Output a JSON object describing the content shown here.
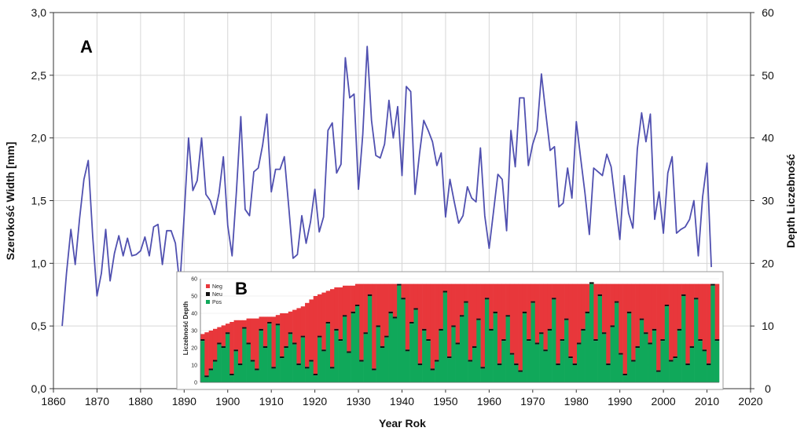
{
  "chart_data": [
    {
      "type": "line",
      "panel_label": "A",
      "xlabel": "Year Rok",
      "ylabel": "Szerokość Width [mm]",
      "ylabel_right": "Depth Liczebność",
      "xlim": [
        1860,
        2020
      ],
      "ylim": [
        0,
        3.0
      ],
      "ylim_right": [
        0,
        60
      ],
      "x_ticks": [
        "1860",
        "1870",
        "1880",
        "1890",
        "1900",
        "1910",
        "1920",
        "1930",
        "1940",
        "1950",
        "1960",
        "1970",
        "1980",
        "1990",
        "2000",
        "2010",
        "2020"
      ],
      "y_ticks": [
        "0,0",
        "0,5",
        "1,0",
        "1,5",
        "2,0",
        "2,5",
        "3,0"
      ],
      "y_ticks_right": [
        "0",
        "10",
        "20",
        "30",
        "40",
        "50",
        "60"
      ],
      "grid": true,
      "color": "#5050b0",
      "series": [
        {
          "x": [
            1862,
            1863,
            1864,
            1865,
            1866,
            1867,
            1868,
            1869,
            1870,
            1871,
            1872,
            1873,
            1874,
            1875,
            1876,
            1877,
            1878,
            1879,
            1880,
            1881,
            1882,
            1883,
            1884,
            1885,
            1886,
            1887,
            1888,
            1889,
            1890,
            1891,
            1892,
            1893,
            1894,
            1895,
            1896,
            1897,
            1898,
            1899,
            1900,
            1901,
            1902,
            1903,
            1904,
            1905,
            1906,
            1907,
            1908,
            1909,
            1910,
            1911,
            1912,
            1913,
            1914,
            1915,
            1916,
            1917,
            1918,
            1919,
            1920,
            1921,
            1922,
            1923,
            1924,
            1925,
            1926,
            1927,
            1928,
            1929,
            1930,
            1931,
            1932,
            1933,
            1934,
            1935,
            1936,
            1937,
            1938,
            1939,
            1940,
            1941,
            1942,
            1943,
            1944,
            1945,
            1946,
            1947,
            1948,
            1949,
            1950,
            1951,
            1952,
            1953,
            1954,
            1955,
            1956,
            1957,
            1958,
            1959,
            1960,
            1961,
            1962,
            1963,
            1964,
            1965,
            1966,
            1967,
            1968,
            1969,
            1970,
            1971,
            1972,
            1973,
            1974,
            1975,
            1976,
            1977,
            1978,
            1979,
            1980,
            1981,
            1982,
            1983,
            1984,
            1985,
            1986,
            1987,
            1988,
            1989,
            1990,
            1991,
            1992,
            1993,
            1994,
            1995,
            1996,
            1997,
            1998,
            1999,
            2000,
            2001,
            2002,
            2003,
            2004,
            2005,
            2006,
            2007,
            2008,
            2009,
            2010,
            2011
          ],
          "values": [
            0.5,
            0.92,
            1.27,
            0.99,
            1.36,
            1.67,
            1.82,
            1.22,
            0.74,
            0.92,
            1.27,
            0.86,
            1.08,
            1.22,
            1.06,
            1.2,
            1.06,
            1.07,
            1.1,
            1.21,
            1.06,
            1.29,
            1.31,
            0.99,
            1.26,
            1.26,
            1.16,
            0.82,
            1.38,
            2.0,
            1.58,
            1.66,
            2.0,
            1.55,
            1.5,
            1.39,
            1.56,
            1.85,
            1.3,
            1.06,
            1.57,
            2.17,
            1.43,
            1.38,
            1.73,
            1.76,
            1.94,
            2.19,
            1.57,
            1.75,
            1.75,
            1.85,
            1.45,
            1.04,
            1.07,
            1.38,
            1.16,
            1.33,
            1.59,
            1.25,
            1.37,
            2.06,
            2.12,
            1.72,
            1.79,
            2.64,
            2.32,
            2.35,
            1.59,
            2.03,
            2.73,
            2.14,
            1.86,
            1.84,
            1.95,
            2.3,
            2.0,
            2.25,
            1.7,
            2.41,
            2.37,
            1.55,
            1.87,
            2.14,
            2.06,
            1.97,
            1.78,
            1.88,
            1.37,
            1.67,
            1.49,
            1.32,
            1.38,
            1.61,
            1.52,
            1.49,
            1.92,
            1.38,
            1.12,
            1.41,
            1.71,
            1.67,
            1.26,
            2.06,
            1.77,
            2.32,
            2.32,
            1.78,
            1.95,
            2.06,
            2.51,
            2.2,
            1.9,
            1.93,
            1.45,
            1.48,
            1.76,
            1.52,
            2.13,
            1.84,
            1.56,
            1.23,
            1.76,
            1.73,
            1.7,
            1.87,
            1.77,
            1.48,
            1.19,
            1.7,
            1.4,
            1.28,
            1.91,
            2.2,
            1.97,
            2.19,
            1.35,
            1.57,
            1.24,
            1.72,
            1.85,
            1.24,
            1.27,
            1.29,
            1.35,
            1.5,
            1.06,
            1.53,
            1.8,
            0.97
          ]
        }
      ]
    },
    {
      "type": "bar",
      "stacked": true,
      "panel_label": "B",
      "ylabel": "Liczebność Depth",
      "ylim": [
        0,
        60
      ],
      "y_ticks": [
        "0",
        "10",
        "20",
        "30",
        "40",
        "50",
        "60"
      ],
      "legend": [
        {
          "name": "Neg",
          "color": "#e8373b"
        },
        {
          "name": "Neu",
          "color": "#111111"
        },
        {
          "name": "Pos",
          "color": "#10a85a"
        }
      ],
      "legend_position": "top-left",
      "x_start": 1863,
      "depth": [
        28,
        29,
        30,
        31,
        32,
        33,
        34,
        35,
        36,
        36,
        36,
        37,
        37,
        37,
        38,
        38,
        38,
        38,
        39,
        40,
        40,
        41,
        42,
        43,
        44,
        46,
        48,
        50,
        51,
        52,
        53,
        54,
        55,
        55,
        56,
        56,
        56,
        57,
        57,
        57,
        57,
        57,
        57,
        57,
        57,
        57,
        57,
        57,
        57,
        57,
        57,
        57,
        57,
        57,
        57,
        57,
        57,
        57,
        57,
        57,
        57,
        57,
        57,
        57,
        57,
        57,
        57,
        57,
        57,
        57,
        57,
        57,
        57,
        57,
        57,
        57,
        57,
        57,
        57,
        57,
        57,
        57,
        57,
        57,
        57,
        57,
        57,
        57,
        57,
        57,
        57,
        57,
        57,
        57,
        57,
        57,
        57,
        57,
        57,
        57,
        57,
        57,
        57,
        57,
        57,
        57,
        57,
        57,
        57,
        57,
        57,
        57,
        57,
        57,
        57,
        57,
        57,
        57,
        57,
        57,
        57,
        57,
        57,
        57
      ],
      "pos": [
        24,
        3,
        7,
        12,
        22,
        20,
        28,
        4,
        18,
        10,
        31,
        22,
        12,
        7,
        30,
        20,
        34,
        8,
        33,
        14,
        20,
        28,
        22,
        10,
        26,
        8,
        12,
        4,
        26,
        18,
        34,
        8,
        30,
        24,
        38,
        17,
        40,
        44,
        12,
        28,
        50,
        7,
        32,
        20,
        26,
        40,
        37,
        56,
        48,
        18,
        34,
        42,
        10,
        30,
        24,
        7,
        12,
        30,
        52,
        14,
        32,
        22,
        38,
        46,
        12,
        20,
        36,
        8,
        48,
        30,
        40,
        10,
        24,
        38,
        16,
        10,
        6,
        40,
        24,
        46,
        22,
        28,
        18,
        30,
        48,
        10,
        24,
        36,
        14,
        10,
        22,
        30,
        40,
        60,
        24,
        50,
        28,
        10,
        32,
        46,
        16,
        4,
        40,
        12,
        20,
        36,
        28,
        22,
        30,
        6,
        24,
        44,
        12,
        14,
        30,
        50,
        10,
        20,
        48,
        24,
        18,
        10,
        56
      ]
    }
  ]
}
